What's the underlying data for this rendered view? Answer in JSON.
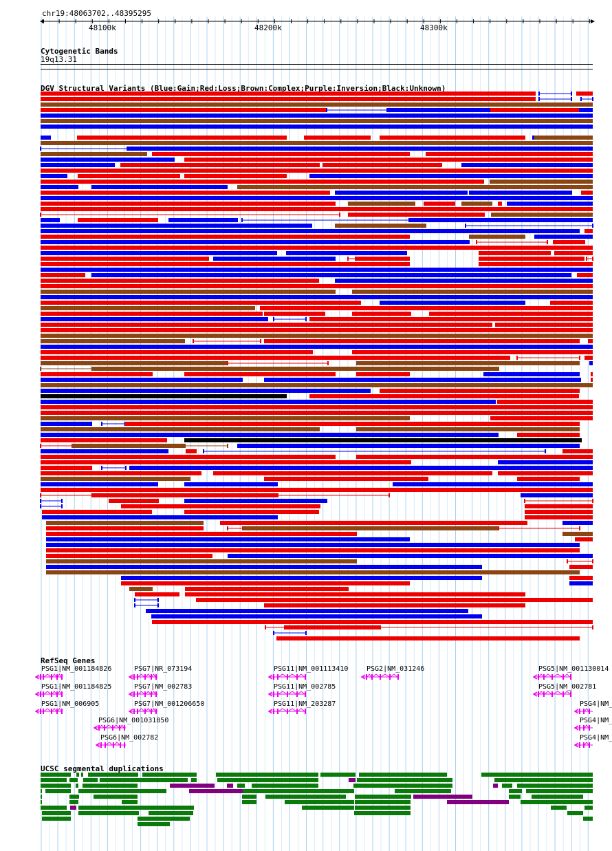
{
  "coords": "chr19:48063702..48395295",
  "ruler": {
    "ticks": [
      "48100k",
      "48200k",
      "48300k"
    ]
  },
  "cytoband": {
    "title": "Cytogenetic Bands",
    "band": "19q13.31"
  },
  "dgv": {
    "title": "DGV Structural Variants (Blue:Gain;Red:Loss;Brown:Complex;Purple:Inversion;Black:Unknown)",
    "colors": {
      "gain": "#0000ee",
      "loss": "#ee0000",
      "complex": "#8b4513",
      "inversion": "#800080",
      "unknown": "#000000"
    }
  },
  "refseq": {
    "title": "RefSeq Genes",
    "color": "#ee00ee",
    "genes": [
      "PSG1|NM_001184826",
      "PSG1|NM_001184825",
      "PSG1|NM_006905",
      "PSG7|NR_073194",
      "PSG7|NM_002783",
      "PSG7|NM_001206650",
      "PSG6|NM_001031850",
      "PSG6|NM_002782",
      "PSG11|NM_001113410",
      "PSG11|NM_002785",
      "PSG11|NM_203287",
      "PSG2|NM_031246",
      "PSG5|NM_001130014",
      "PSG5|NM_002781",
      "PSG4|NM_",
      "PSG4|NM_",
      "PSG4|NM_"
    ]
  },
  "segdups": {
    "title": "UCSC segmental duplications",
    "colors": {
      "green": "#0a7a0a",
      "purple": "#800080"
    }
  }
}
